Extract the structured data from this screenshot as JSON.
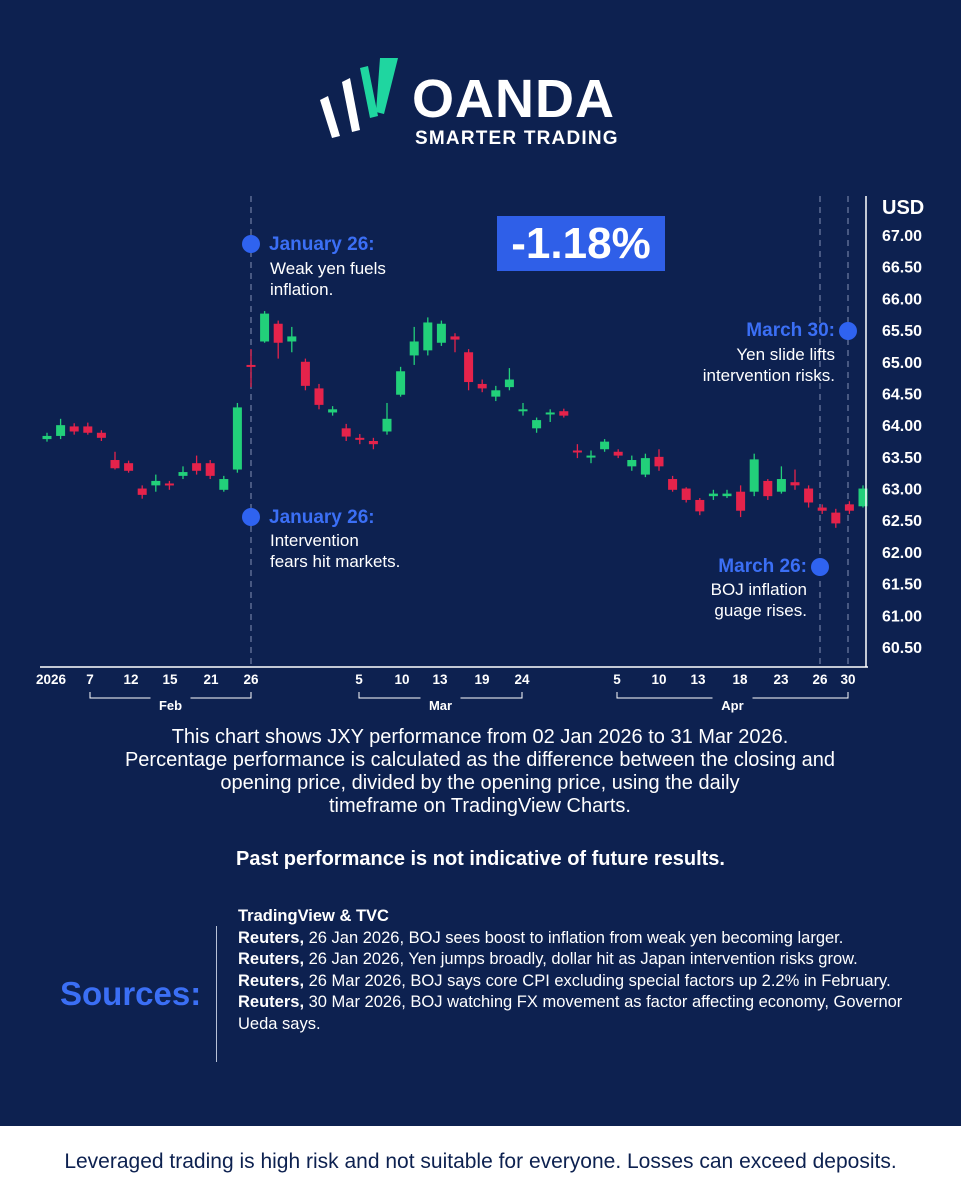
{
  "brand": {
    "name": "OANDA",
    "tagline": "SMARTER TRADING",
    "colors": {
      "background": "#0d2150",
      "accent": "#2f63f0",
      "up": "#22d07a",
      "down": "#e5234b",
      "logo_green": "#1fd6a0"
    }
  },
  "performance_badge": "-1.18%",
  "annotations": [
    {
      "title": "January 26:",
      "lines": [
        "Weak yen fuels",
        "inflation."
      ]
    },
    {
      "title": "January 26:",
      "lines": [
        "Intervention",
        "fears hit markets."
      ]
    },
    {
      "title": "March 30:",
      "lines": [
        "Yen slide lifts",
        "intervention risks."
      ]
    },
    {
      "title": "March 26:",
      "lines": [
        "BOJ inflation",
        "guage rises."
      ]
    }
  ],
  "chart_data": {
    "type": "candlestick",
    "currency_label": "USD",
    "ylim": [
      60.3,
      67.3
    ],
    "y_ticks": [
      "67.00",
      "66.50",
      "66.00",
      "65.50",
      "65.00",
      "64.50",
      "64.00",
      "63.50",
      "63.00",
      "62.50",
      "62.00",
      "61.50",
      "61.00",
      "60.50"
    ],
    "x_tick_labels": [
      "2026",
      "7",
      "12",
      "15",
      "21",
      "26",
      "5",
      "10",
      "13",
      "19",
      "24",
      "5",
      "10",
      "13",
      "18",
      "23",
      "26",
      "30"
    ],
    "month_labels": [
      "Feb",
      "Mar",
      "Apr"
    ],
    "candles": [
      {
        "date": "2026-01-02",
        "open": 63.78,
        "high": 63.88,
        "low": 63.74,
        "close": 63.83
      },
      {
        "date": "2026-01-05",
        "open": 63.83,
        "high": 64.1,
        "low": 63.78,
        "close": 64.0
      },
      {
        "date": "2026-01-06",
        "open": 63.98,
        "high": 64.03,
        "low": 63.85,
        "close": 63.9
      },
      {
        "date": "2026-01-07",
        "open": 63.98,
        "high": 64.04,
        "low": 63.85,
        "close": 63.88
      },
      {
        "date": "2026-01-08",
        "open": 63.88,
        "high": 63.92,
        "low": 63.75,
        "close": 63.8
      },
      {
        "date": "2026-01-09",
        "open": 63.45,
        "high": 63.58,
        "low": 63.3,
        "close": 63.32
      },
      {
        "date": "2026-01-12",
        "open": 63.4,
        "high": 63.44,
        "low": 63.25,
        "close": 63.28
      },
      {
        "date": "2026-01-13",
        "open": 63.0,
        "high": 63.05,
        "low": 62.84,
        "close": 62.9
      },
      {
        "date": "2026-01-14",
        "open": 63.05,
        "high": 63.22,
        "low": 62.95,
        "close": 63.12
      },
      {
        "date": "2026-01-15",
        "open": 63.08,
        "high": 63.12,
        "low": 62.98,
        "close": 63.07
      },
      {
        "date": "2026-01-16",
        "open": 63.2,
        "high": 63.35,
        "low": 63.15,
        "close": 63.26
      },
      {
        "date": "2026-01-19",
        "open": 63.4,
        "high": 63.52,
        "low": 63.22,
        "close": 63.28
      },
      {
        "date": "2026-01-20",
        "open": 63.4,
        "high": 63.45,
        "low": 63.15,
        "close": 63.2
      },
      {
        "date": "2026-01-21",
        "open": 62.98,
        "high": 63.2,
        "low": 62.95,
        "close": 63.15
      },
      {
        "date": "2026-01-22",
        "open": 63.3,
        "high": 64.35,
        "low": 63.25,
        "close": 64.28
      },
      {
        "date": "2026-01-23",
        "open": 64.95,
        "high": 65.2,
        "low": 64.6,
        "close": 64.93
      },
      {
        "date": "2026-01-26",
        "open": 65.32,
        "high": 65.8,
        "low": 65.3,
        "close": 65.76
      },
      {
        "date": "2026-01-27",
        "open": 65.6,
        "high": 65.65,
        "low": 65.05,
        "close": 65.3
      },
      {
        "date": "2026-01-28",
        "open": 65.32,
        "high": 65.55,
        "low": 65.15,
        "close": 65.4
      },
      {
        "date": "2026-01-29",
        "open": 65.0,
        "high": 65.05,
        "low": 64.55,
        "close": 64.62
      },
      {
        "date": "2026-01-30",
        "open": 64.58,
        "high": 64.65,
        "low": 64.25,
        "close": 64.32
      },
      {
        "date": "2026-02-02",
        "open": 64.2,
        "high": 64.3,
        "low": 64.15,
        "close": 64.25
      },
      {
        "date": "2026-02-03",
        "open": 63.95,
        "high": 64.02,
        "low": 63.75,
        "close": 63.82
      },
      {
        "date": "2026-02-04",
        "open": 63.8,
        "high": 63.86,
        "low": 63.7,
        "close": 63.78
      },
      {
        "date": "2026-02-05",
        "open": 63.75,
        "high": 63.8,
        "low": 63.62,
        "close": 63.7
      },
      {
        "date": "2026-02-06",
        "open": 63.9,
        "high": 64.35,
        "low": 63.85,
        "close": 64.1
      },
      {
        "date": "2026-02-09",
        "open": 64.48,
        "high": 64.92,
        "low": 64.45,
        "close": 64.85
      },
      {
        "date": "2026-02-10",
        "open": 65.1,
        "high": 65.55,
        "low": 64.95,
        "close": 65.32
      },
      {
        "date": "2026-02-11",
        "open": 65.18,
        "high": 65.7,
        "low": 65.1,
        "close": 65.62
      },
      {
        "date": "2026-02-12",
        "open": 65.3,
        "high": 65.65,
        "low": 65.25,
        "close": 65.6
      },
      {
        "date": "2026-02-13",
        "open": 65.4,
        "high": 65.45,
        "low": 65.15,
        "close": 65.35
      },
      {
        "date": "2026-02-16",
        "open": 65.15,
        "high": 65.2,
        "low": 64.55,
        "close": 64.68
      },
      {
        "date": "2026-02-17",
        "open": 64.65,
        "high": 64.72,
        "low": 64.52,
        "close": 64.58
      },
      {
        "date": "2026-02-18",
        "open": 64.45,
        "high": 64.62,
        "low": 64.38,
        "close": 64.55
      },
      {
        "date": "2026-02-19",
        "open": 64.6,
        "high": 64.9,
        "low": 64.55,
        "close": 64.72
      },
      {
        "date": "2026-02-20",
        "open": 64.22,
        "high": 64.35,
        "low": 64.15,
        "close": 64.25
      },
      {
        "date": "2026-02-23",
        "open": 63.95,
        "high": 64.12,
        "low": 63.88,
        "close": 64.08
      },
      {
        "date": "2026-02-24",
        "open": 64.18,
        "high": 64.25,
        "low": 64.05,
        "close": 64.2
      },
      {
        "date": "2026-02-25",
        "open": 64.22,
        "high": 64.26,
        "low": 64.12,
        "close": 64.15
      },
      {
        "date": "2026-02-26",
        "open": 63.6,
        "high": 63.7,
        "low": 63.48,
        "close": 63.58
      },
      {
        "date": "2026-02-27",
        "open": 63.5,
        "high": 63.6,
        "low": 63.4,
        "close": 63.52
      },
      {
        "date": "2026-03-02",
        "open": 63.62,
        "high": 63.78,
        "low": 63.58,
        "close": 63.74
      },
      {
        "date": "2026-03-03",
        "open": 63.58,
        "high": 63.62,
        "low": 63.48,
        "close": 63.52
      },
      {
        "date": "2026-03-04",
        "open": 63.35,
        "high": 63.52,
        "low": 63.28,
        "close": 63.45
      },
      {
        "date": "2026-03-05",
        "open": 63.22,
        "high": 63.55,
        "low": 63.18,
        "close": 63.48
      },
      {
        "date": "2026-03-06",
        "open": 63.5,
        "high": 63.62,
        "low": 63.28,
        "close": 63.35
      },
      {
        "date": "2026-03-09",
        "open": 63.15,
        "high": 63.2,
        "low": 62.95,
        "close": 62.98
      },
      {
        "date": "2026-03-10",
        "open": 63.0,
        "high": 63.02,
        "low": 62.78,
        "close": 62.82
      },
      {
        "date": "2026-03-11",
        "open": 62.82,
        "high": 62.85,
        "low": 62.58,
        "close": 62.64
      },
      {
        "date": "2026-03-12",
        "open": 62.88,
        "high": 62.98,
        "low": 62.82,
        "close": 62.92
      },
      {
        "date": "2026-03-13",
        "open": 62.88,
        "high": 62.98,
        "low": 62.85,
        "close": 62.92
      },
      {
        "date": "2026-03-16",
        "open": 62.95,
        "high": 63.05,
        "low": 62.55,
        "close": 62.65
      },
      {
        "date": "2026-03-17",
        "open": 62.95,
        "high": 63.55,
        "low": 62.88,
        "close": 63.46
      },
      {
        "date": "2026-03-18",
        "open": 63.12,
        "high": 63.15,
        "low": 62.82,
        "close": 62.88
      },
      {
        "date": "2026-03-19",
        "open": 62.95,
        "high": 63.35,
        "low": 62.92,
        "close": 63.15
      },
      {
        "date": "2026-03-20",
        "open": 63.1,
        "high": 63.3,
        "low": 62.98,
        "close": 63.05
      },
      {
        "date": "2026-03-23",
        "open": 63.0,
        "high": 63.05,
        "low": 62.7,
        "close": 62.78
      },
      {
        "date": "2026-03-24",
        "open": 62.7,
        "high": 62.75,
        "low": 62.6,
        "close": 62.65
      },
      {
        "date": "2026-03-25",
        "open": 62.62,
        "high": 62.68,
        "low": 62.38,
        "close": 62.45
      },
      {
        "date": "2026-03-26",
        "open": 62.75,
        "high": 62.8,
        "low": 62.6,
        "close": 62.65
      },
      {
        "date": "2026-03-27",
        "open": 62.72,
        "high": 63.05,
        "low": 62.7,
        "close": 63.0
      }
    ]
  },
  "description": [
    "This chart shows JXY performance from 02 Jan 2026 to 31 Mar 2026.",
    "Percentage performance is calculated as the difference between the closing and",
    "opening price, divided by the opening price, using the daily",
    "timeframe on TradingView Charts."
  ],
  "disclaimer": "Past performance is not indicative of future results.",
  "sources": {
    "label": "Sources:",
    "items": [
      {
        "bold": "TradingView & TVC",
        "text": ""
      },
      {
        "bold": "Reuters,",
        "text": " 26 Jan 2026, BOJ sees boost to inflation from weak yen becoming larger."
      },
      {
        "bold": "Reuters,",
        "text": " 26 Jan 2026, Yen jumps broadly, dollar hit as Japan intervention risks grow."
      },
      {
        "bold": "Reuters,",
        "text": " 26 Mar 2026, BOJ says core CPI excluding special factors up 2.2% in February."
      },
      {
        "bold": "Reuters,",
        "text": " 30 Mar 2026, BOJ watching FX movement as factor affecting economy, Governor Ueda says."
      }
    ]
  },
  "risk_warning": "Leveraged trading is high risk and not suitable for everyone. Losses can exceed deposits."
}
